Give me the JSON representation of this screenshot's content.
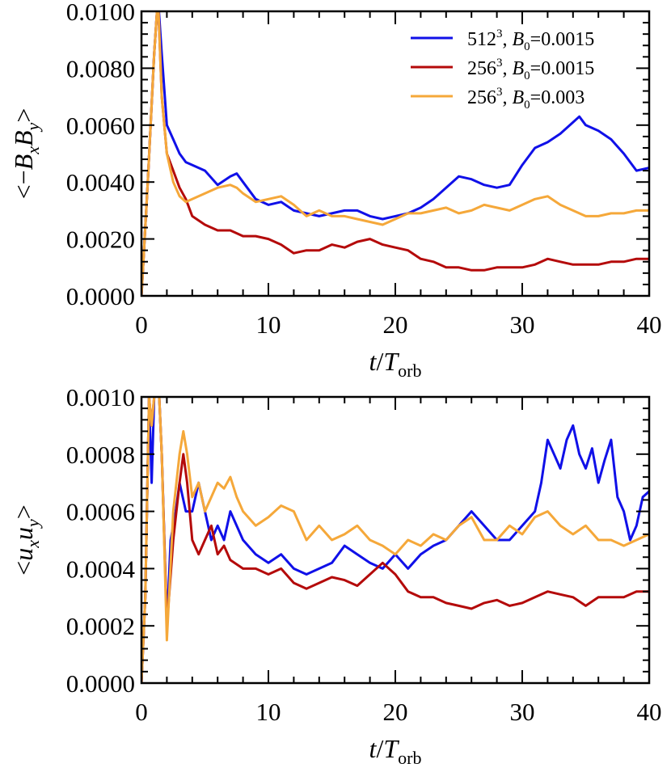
{
  "chart_data": [
    {
      "type": "line",
      "ylabel_parts": [
        "<",
        "−",
        "B",
        "x",
        "B",
        "y",
        ">"
      ],
      "xlabel_parts": [
        "t",
        "/",
        "T",
        "orb"
      ],
      "xlim": [
        0,
        40
      ],
      "ylim": [
        0.0,
        0.01
      ],
      "xticks": [
        0,
        10,
        20,
        30,
        40
      ],
      "xtick_labels": [
        "0",
        "10",
        "20",
        "30",
        "40"
      ],
      "yticks": [
        0.0,
        0.002,
        0.004,
        0.006,
        0.008,
        0.01
      ],
      "ytick_labels": [
        "0.0000",
        "0.0020",
        "0.0040",
        "0.0060",
        "0.0080",
        "0.0100"
      ],
      "legend": [
        {
          "res": "512",
          "exp": "3",
          "param": "B",
          "sub": "0",
          "value": "=0.0015",
          "color": "#1010e8"
        },
        {
          "res": "256",
          "exp": "3",
          "param": "B",
          "sub": "0",
          "value": "=0.0015",
          "color": "#b40a0a"
        },
        {
          "res": "256",
          "exp": "3",
          "param": "B",
          "sub": "0",
          "value": "=0.003",
          "color": "#f5a83a"
        }
      ],
      "series": [
        {
          "color": "#1010e8",
          "x": [
            0,
            0.5,
            1.0,
            1.3,
            1.6,
            2.0,
            2.5,
            3.0,
            3.5,
            4.0,
            5.0,
            6.0,
            7.0,
            7.5,
            8.0,
            9.0,
            10.0,
            11.0,
            12.0,
            13.0,
            14.0,
            15.0,
            16.0,
            17.0,
            18.0,
            19.0,
            20.0,
            21.0,
            22.0,
            23.0,
            24.0,
            25.0,
            26.0,
            27.0,
            28.0,
            29.0,
            30.0,
            31.0,
            32.0,
            33.0,
            34.0,
            34.5,
            35.0,
            36.0,
            37.0,
            38.0,
            39.0,
            40.0
          ],
          "y": [
            0.0,
            0.004,
            0.0085,
            0.0105,
            0.0085,
            0.006,
            0.0055,
            0.005,
            0.0047,
            0.0046,
            0.0044,
            0.0039,
            0.0042,
            0.0043,
            0.004,
            0.0034,
            0.0032,
            0.0033,
            0.003,
            0.0029,
            0.0028,
            0.0029,
            0.003,
            0.003,
            0.0028,
            0.0027,
            0.0028,
            0.0029,
            0.0031,
            0.0034,
            0.0038,
            0.0042,
            0.0041,
            0.0039,
            0.0038,
            0.0039,
            0.0046,
            0.0052,
            0.0054,
            0.0057,
            0.0061,
            0.0063,
            0.006,
            0.0058,
            0.0055,
            0.005,
            0.0044,
            0.0045
          ]
        },
        {
          "color": "#b40a0a",
          "x": [
            0,
            0.5,
            1.0,
            1.3,
            1.6,
            2.0,
            2.5,
            3.0,
            3.5,
            4.0,
            5.0,
            6.0,
            7.0,
            8.0,
            9.0,
            10.0,
            11.0,
            12.0,
            13.0,
            14.0,
            15.0,
            16.0,
            17.0,
            18.0,
            19.0,
            20.0,
            21.0,
            22.0,
            23.0,
            24.0,
            25.0,
            26.0,
            27.0,
            28.0,
            29.0,
            30.0,
            31.0,
            32.0,
            33.0,
            34.0,
            35.0,
            36.0,
            37.0,
            38.0,
            39.0,
            40.0
          ],
          "y": [
            0.0,
            0.004,
            0.0085,
            0.0105,
            0.007,
            0.005,
            0.0044,
            0.0038,
            0.0034,
            0.0028,
            0.0025,
            0.0023,
            0.0023,
            0.0021,
            0.0021,
            0.002,
            0.0018,
            0.0015,
            0.0016,
            0.0016,
            0.0018,
            0.0017,
            0.0019,
            0.002,
            0.0018,
            0.0017,
            0.0016,
            0.0013,
            0.0012,
            0.001,
            0.001,
            0.0009,
            0.0009,
            0.001,
            0.001,
            0.001,
            0.0011,
            0.0013,
            0.0012,
            0.0011,
            0.0011,
            0.0011,
            0.0012,
            0.0012,
            0.0013,
            0.0013
          ]
        },
        {
          "color": "#f5a83a",
          "x": [
            0,
            0.5,
            1.0,
            1.3,
            1.6,
            2.0,
            2.5,
            3.0,
            3.5,
            4.0,
            5.0,
            6.0,
            7.0,
            7.5,
            8.0,
            9.0,
            10.0,
            11.0,
            12.0,
            13.0,
            14.0,
            15.0,
            16.0,
            17.0,
            18.0,
            19.0,
            20.0,
            21.0,
            22.0,
            23.0,
            24.0,
            25.0,
            26.0,
            27.0,
            28.0,
            29.0,
            30.0,
            31.0,
            32.0,
            33.0,
            34.0,
            35.0,
            36.0,
            37.0,
            38.0,
            39.0,
            40.0
          ],
          "y": [
            0.0,
            0.004,
            0.0085,
            0.0105,
            0.007,
            0.005,
            0.004,
            0.0035,
            0.0033,
            0.0034,
            0.0036,
            0.0038,
            0.0039,
            0.0038,
            0.0036,
            0.0033,
            0.0034,
            0.0035,
            0.0032,
            0.0028,
            0.003,
            0.0028,
            0.0028,
            0.0027,
            0.0026,
            0.0025,
            0.0027,
            0.0029,
            0.0029,
            0.003,
            0.0031,
            0.0029,
            0.003,
            0.0032,
            0.0031,
            0.003,
            0.0032,
            0.0034,
            0.0035,
            0.0032,
            0.003,
            0.0028,
            0.0028,
            0.0029,
            0.0029,
            0.003,
            0.003
          ]
        }
      ]
    },
    {
      "type": "line",
      "ylabel_parts": [
        "<",
        "u",
        "x",
        "u",
        "y",
        ">"
      ],
      "xlabel_parts": [
        "t",
        "/",
        "T",
        "orb"
      ],
      "xlim": [
        0,
        40
      ],
      "ylim": [
        0.0,
        0.001
      ],
      "xticks": [
        0,
        10,
        20,
        30,
        40
      ],
      "xtick_labels": [
        "0",
        "10",
        "20",
        "30",
        "40"
      ],
      "yticks": [
        0.0,
        0.0002,
        0.0004,
        0.0006,
        0.0008,
        0.001
      ],
      "ytick_labels": [
        "0.0000",
        "0.0002",
        "0.0004",
        "0.0006",
        "0.0008",
        "0.0010"
      ],
      "series": [
        {
          "color": "#1010e8",
          "x": [
            0,
            0.3,
            0.6,
            0.8,
            1.0,
            1.3,
            1.6,
            2.0,
            2.3,
            2.7,
            3.0,
            3.5,
            4.0,
            4.5,
            5.0,
            5.5,
            6.0,
            6.5,
            7.0,
            8.0,
            9.0,
            10.0,
            11.0,
            12.0,
            13.0,
            14.0,
            15.0,
            16.0,
            17.0,
            18.0,
            19.0,
            20.0,
            21.0,
            22.0,
            23.0,
            24.0,
            25.0,
            26.0,
            27.0,
            28.0,
            29.0,
            30.0,
            31.0,
            31.5,
            32.0,
            32.5,
            33.0,
            33.5,
            34.0,
            34.5,
            35.0,
            35.5,
            36.0,
            36.5,
            37.0,
            37.5,
            38.0,
            38.5,
            39.0,
            39.5,
            40.0
          ],
          "y": [
            0.0,
            0.0003,
            0.001,
            0.0007,
            0.001,
            0.0011,
            0.0008,
            0.0002,
            0.0005,
            0.0006,
            0.0007,
            0.0006,
            0.0006,
            0.0007,
            0.0006,
            0.0005,
            0.00055,
            0.0005,
            0.0006,
            0.0005,
            0.00045,
            0.00042,
            0.00045,
            0.0004,
            0.00038,
            0.0004,
            0.00042,
            0.00048,
            0.00045,
            0.00042,
            0.0004,
            0.00045,
            0.0004,
            0.00045,
            0.00048,
            0.0005,
            0.00055,
            0.0006,
            0.00055,
            0.0005,
            0.0005,
            0.00055,
            0.0006,
            0.0007,
            0.00085,
            0.0008,
            0.00075,
            0.00085,
            0.0009,
            0.0008,
            0.00075,
            0.00082,
            0.0007,
            0.00078,
            0.00085,
            0.00065,
            0.0006,
            0.0005,
            0.00055,
            0.00065,
            0.00067
          ]
        },
        {
          "color": "#b40a0a",
          "x": [
            0,
            0.3,
            0.6,
            0.8,
            1.0,
            1.3,
            1.6,
            2.0,
            2.5,
            3.0,
            3.3,
            3.6,
            4.0,
            4.5,
            5.0,
            5.5,
            6.0,
            6.5,
            7.0,
            8.0,
            9.0,
            10.0,
            11.0,
            12.0,
            13.0,
            14.0,
            15.0,
            16.0,
            17.0,
            18.0,
            19.0,
            20.0,
            21.0,
            22.0,
            23.0,
            24.0,
            25.0,
            26.0,
            27.0,
            28.0,
            29.0,
            30.0,
            31.0,
            32.0,
            33.0,
            34.0,
            35.0,
            36.0,
            37.0,
            38.0,
            39.0,
            40.0
          ],
          "y": [
            0.0,
            0.0003,
            0.001,
            0.0009,
            0.001,
            0.0011,
            0.0008,
            0.0002,
            0.0005,
            0.0007,
            0.0008,
            0.0007,
            0.0005,
            0.00045,
            0.0005,
            0.00055,
            0.00045,
            0.00048,
            0.00043,
            0.0004,
            0.0004,
            0.00038,
            0.0004,
            0.00035,
            0.00033,
            0.00035,
            0.00037,
            0.00036,
            0.00034,
            0.00038,
            0.00042,
            0.00038,
            0.00032,
            0.0003,
            0.0003,
            0.00028,
            0.00027,
            0.00026,
            0.00028,
            0.00029,
            0.00027,
            0.00028,
            0.0003,
            0.00032,
            0.00031,
            0.0003,
            0.00027,
            0.0003,
            0.0003,
            0.0003,
            0.00032,
            0.00032
          ]
        },
        {
          "color": "#f5a83a",
          "x": [
            0,
            0.3,
            0.6,
            0.8,
            1.0,
            1.3,
            1.6,
            2.0,
            2.5,
            3.0,
            3.3,
            3.6,
            4.0,
            4.5,
            5.0,
            5.5,
            6.0,
            6.5,
            7.0,
            7.5,
            8.0,
            9.0,
            10.0,
            11.0,
            12.0,
            13.0,
            14.0,
            15.0,
            16.0,
            17.0,
            18.0,
            19.0,
            20.0,
            21.0,
            22.0,
            23.0,
            24.0,
            25.0,
            26.0,
            27.0,
            28.0,
            29.0,
            30.0,
            31.0,
            32.0,
            33.0,
            34.0,
            35.0,
            36.0,
            37.0,
            38.0,
            39.0,
            40.0
          ],
          "y": [
            0.0,
            0.0003,
            0.001,
            0.0009,
            0.001,
            0.0011,
            0.0008,
            0.00015,
            0.0006,
            0.0008,
            0.00088,
            0.0008,
            0.00065,
            0.0007,
            0.0006,
            0.00065,
            0.0007,
            0.00068,
            0.00072,
            0.00065,
            0.0006,
            0.00055,
            0.00058,
            0.00062,
            0.0006,
            0.0005,
            0.00055,
            0.0005,
            0.00052,
            0.00055,
            0.0005,
            0.00048,
            0.00045,
            0.0005,
            0.00048,
            0.00052,
            0.0005,
            0.00055,
            0.00058,
            0.0005,
            0.0005,
            0.00055,
            0.00052,
            0.00058,
            0.0006,
            0.00055,
            0.00052,
            0.00055,
            0.0005,
            0.0005,
            0.00048,
            0.0005,
            0.00052
          ]
        }
      ]
    }
  ]
}
